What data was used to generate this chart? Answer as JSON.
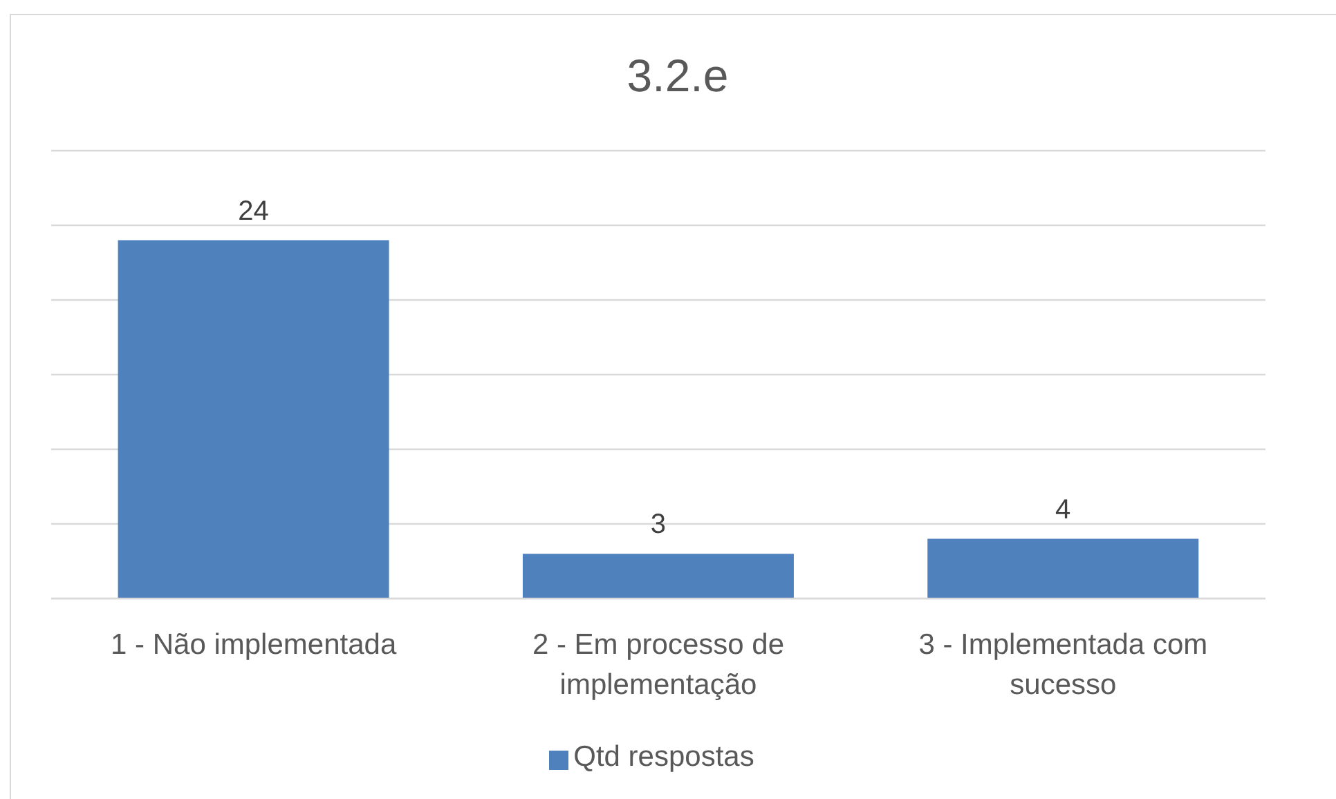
{
  "chart_data": {
    "type": "bar",
    "title": "3.2.e",
    "categories": [
      "1 - Não implementada",
      "2 - Em processo de implementação",
      "3 - Implementada com sucesso"
    ],
    "series": [
      {
        "name": "Qtd respostas",
        "color": "#4f81bd",
        "values": [
          24,
          3,
          4
        ]
      }
    ],
    "ylim": [
      0,
      30
    ],
    "yticks": [
      {
        "value": 0,
        "label": null
      },
      {
        "value": 5,
        "label": null
      },
      {
        "value": 10,
        "label": null
      },
      {
        "value": 15,
        "label": null
      },
      {
        "value": 20,
        "label": null
      },
      {
        "value": 25,
        "label": null
      },
      {
        "value": 30,
        "label": null
      }
    ],
    "grid": "y",
    "legend": "bottom",
    "data_labels": true,
    "tick_labels": "x"
  }
}
